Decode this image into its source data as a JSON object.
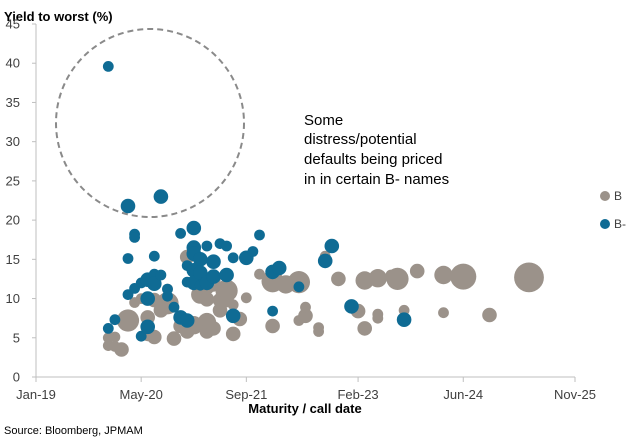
{
  "chart_data": {
    "type": "scatter",
    "title": "",
    "ylabel": "Yield to worst (%)",
    "xlabel": "Maturity / call date",
    "ylim": [
      0,
      45
    ],
    "yticks": [
      0,
      5,
      10,
      15,
      20,
      25,
      30,
      35,
      40,
      45
    ],
    "xlim": [
      "2019-01",
      "2025-11"
    ],
    "xticks": [
      {
        "label": "Jan-19",
        "date": "2019-01"
      },
      {
        "label": "May-20",
        "date": "2020-05"
      },
      {
        "label": "Sep-21",
        "date": "2021-09"
      },
      {
        "label": "Feb-23",
        "date": "2023-02"
      },
      {
        "label": "Jun-24",
        "date": "2024-06"
      },
      {
        "label": "Nov-25",
        "date": "2025-11"
      }
    ],
    "grid": false,
    "legend_position": "right",
    "annotation": {
      "lines": [
        "Some",
        "distress/potential",
        "defaults being priced",
        "in in certain B- names"
      ],
      "circle_style": "dashed"
    },
    "source": "Source: Bloomberg, JPMAM",
    "series": [
      {
        "name": "B",
        "color": "#9b928a",
        "points": [
          {
            "date": "2019-12",
            "y": 5.0,
            "size": 2
          },
          {
            "date": "2019-12",
            "y": 4.0,
            "size": 2
          },
          {
            "date": "2020-01",
            "y": 3.9,
            "size": 2
          },
          {
            "date": "2020-01",
            "y": 5.1,
            "size": 2
          },
          {
            "date": "2020-02",
            "y": 3.5,
            "size": 3
          },
          {
            "date": "2020-03",
            "y": 7.2,
            "size": 5
          },
          {
            "date": "2020-04",
            "y": 9.5,
            "size": 2
          },
          {
            "date": "2020-05",
            "y": 10.0,
            "size": 2
          },
          {
            "date": "2020-06",
            "y": 7.6,
            "size": 3
          },
          {
            "date": "2020-06",
            "y": 5.5,
            "size": 3
          },
          {
            "date": "2020-07",
            "y": 9.8,
            "size": 3
          },
          {
            "date": "2020-07",
            "y": 5.1,
            "size": 3
          },
          {
            "date": "2020-08",
            "y": 8.5,
            "size": 3
          },
          {
            "date": "2020-09",
            "y": 9.4,
            "size": 5
          },
          {
            "date": "2020-09",
            "y": 11.2,
            "size": 2
          },
          {
            "date": "2020-10",
            "y": 4.9,
            "size": 3
          },
          {
            "date": "2020-11",
            "y": 6.5,
            "size": 3
          },
          {
            "date": "2020-12",
            "y": 15.3,
            "size": 3
          },
          {
            "date": "2020-12",
            "y": 5.8,
            "size": 3
          },
          {
            "date": "2021-01",
            "y": 6.6,
            "size": 4
          },
          {
            "date": "2021-02",
            "y": 12.3,
            "size": 3
          },
          {
            "date": "2021-02",
            "y": 10.5,
            "size": 4
          },
          {
            "date": "2021-03",
            "y": 9.9,
            "size": 3
          },
          {
            "date": "2021-03",
            "y": 11.4,
            "size": 3
          },
          {
            "date": "2021-03",
            "y": 7.0,
            "size": 4
          },
          {
            "date": "2021-03",
            "y": 5.8,
            "size": 3
          },
          {
            "date": "2021-04",
            "y": 11.8,
            "size": 3
          },
          {
            "date": "2021-04",
            "y": 12.5,
            "size": 3
          },
          {
            "date": "2021-04",
            "y": 6.2,
            "size": 3
          },
          {
            "date": "2021-05",
            "y": 9.8,
            "size": 3
          },
          {
            "date": "2021-05",
            "y": 8.5,
            "size": 3
          },
          {
            "date": "2021-06",
            "y": 11.0,
            "size": 5
          },
          {
            "date": "2021-06",
            "y": 9.8,
            "size": 3
          },
          {
            "date": "2021-07",
            "y": 5.5,
            "size": 3
          },
          {
            "date": "2021-07",
            "y": 9.2,
            "size": 2
          },
          {
            "date": "2021-08",
            "y": 7.4,
            "size": 3
          },
          {
            "date": "2021-09",
            "y": 10.1,
            "size": 2
          },
          {
            "date": "2021-11",
            "y": 13.1,
            "size": 2
          },
          {
            "date": "2022-01",
            "y": 6.5,
            "size": 3
          },
          {
            "date": "2022-01",
            "y": 12.2,
            "size": 5
          },
          {
            "date": "2022-03",
            "y": 11.8,
            "size": 4
          },
          {
            "date": "2022-05",
            "y": 12.1,
            "size": 5
          },
          {
            "date": "2022-05",
            "y": 7.2,
            "size": 2
          },
          {
            "date": "2022-06",
            "y": 7.8,
            "size": 3
          },
          {
            "date": "2022-06",
            "y": 8.9,
            "size": 2
          },
          {
            "date": "2022-08",
            "y": 5.8,
            "size": 2
          },
          {
            "date": "2022-08",
            "y": 6.3,
            "size": 2
          },
          {
            "date": "2022-09",
            "y": 15.4,
            "size": 2
          },
          {
            "date": "2022-11",
            "y": 12.5,
            "size": 3
          },
          {
            "date": "2023-02",
            "y": 8.4,
            "size": 3
          },
          {
            "date": "2023-03",
            "y": 12.3,
            "size": 4
          },
          {
            "date": "2023-03",
            "y": 6.2,
            "size": 3
          },
          {
            "date": "2023-05",
            "y": 12.6,
            "size": 4
          },
          {
            "date": "2023-05",
            "y": 7.5,
            "size": 2
          },
          {
            "date": "2023-05",
            "y": 8.0,
            "size": 2
          },
          {
            "date": "2023-07",
            "y": 13.0,
            "size": 2
          },
          {
            "date": "2023-08",
            "y": 12.5,
            "size": 5
          },
          {
            "date": "2023-09",
            "y": 8.5,
            "size": 2
          },
          {
            "date": "2023-11",
            "y": 13.5,
            "size": 3
          },
          {
            "date": "2024-03",
            "y": 13.0,
            "size": 4
          },
          {
            "date": "2024-03",
            "y": 8.2,
            "size": 2
          },
          {
            "date": "2024-06",
            "y": 12.8,
            "size": 6
          },
          {
            "date": "2024-10",
            "y": 7.9,
            "size": 3
          },
          {
            "date": "2025-04",
            "y": 12.7,
            "size": 7
          }
        ]
      },
      {
        "name": "B-",
        "color": "#0f6b94",
        "points": [
          {
            "date": "2019-12",
            "y": 39.6,
            "size": 2
          },
          {
            "date": "2019-12",
            "y": 6.2,
            "size": 2
          },
          {
            "date": "2020-01",
            "y": 7.3,
            "size": 2
          },
          {
            "date": "2020-03",
            "y": 21.8,
            "size": 3
          },
          {
            "date": "2020-03",
            "y": 15.1,
            "size": 2
          },
          {
            "date": "2020-03",
            "y": 10.5,
            "size": 2
          },
          {
            "date": "2020-04",
            "y": 18.2,
            "size": 2
          },
          {
            "date": "2020-04",
            "y": 17.8,
            "size": 2
          },
          {
            "date": "2020-04",
            "y": 11.3,
            "size": 2
          },
          {
            "date": "2020-05",
            "y": 12.0,
            "size": 2
          },
          {
            "date": "2020-05",
            "y": 5.2,
            "size": 2
          },
          {
            "date": "2020-06",
            "y": 12.4,
            "size": 3
          },
          {
            "date": "2020-06",
            "y": 10.0,
            "size": 3
          },
          {
            "date": "2020-06",
            "y": 6.4,
            "size": 3
          },
          {
            "date": "2020-07",
            "y": 13.1,
            "size": 2
          },
          {
            "date": "2020-07",
            "y": 11.9,
            "size": 3
          },
          {
            "date": "2020-07",
            "y": 15.4,
            "size": 2
          },
          {
            "date": "2020-08",
            "y": 23.0,
            "size": 3
          },
          {
            "date": "2020-08",
            "y": 13.0,
            "size": 2
          },
          {
            "date": "2020-09",
            "y": 10.3,
            "size": 2
          },
          {
            "date": "2020-09",
            "y": 11.2,
            "size": 2
          },
          {
            "date": "2020-10",
            "y": 8.9,
            "size": 2
          },
          {
            "date": "2020-11",
            "y": 18.3,
            "size": 2
          },
          {
            "date": "2020-11",
            "y": 7.6,
            "size": 3
          },
          {
            "date": "2020-12",
            "y": 12.1,
            "size": 2
          },
          {
            "date": "2020-12",
            "y": 14.2,
            "size": 2
          },
          {
            "date": "2020-12",
            "y": 7.2,
            "size": 3
          },
          {
            "date": "2021-01",
            "y": 19.0,
            "size": 3
          },
          {
            "date": "2021-01",
            "y": 16.5,
            "size": 3
          },
          {
            "date": "2021-01",
            "y": 15.7,
            "size": 3
          },
          {
            "date": "2021-01",
            "y": 13.6,
            "size": 3
          },
          {
            "date": "2021-01",
            "y": 12.0,
            "size": 3
          },
          {
            "date": "2021-02",
            "y": 15.0,
            "size": 3
          },
          {
            "date": "2021-02",
            "y": 13.3,
            "size": 3
          },
          {
            "date": "2021-02",
            "y": 11.7,
            "size": 2
          },
          {
            "date": "2021-03",
            "y": 16.7,
            "size": 2
          },
          {
            "date": "2021-03",
            "y": 12.0,
            "size": 3
          },
          {
            "date": "2021-04",
            "y": 14.7,
            "size": 3
          },
          {
            "date": "2021-04",
            "y": 12.8,
            "size": 3
          },
          {
            "date": "2021-05",
            "y": 17.0,
            "size": 2
          },
          {
            "date": "2021-06",
            "y": 13.0,
            "size": 3
          },
          {
            "date": "2021-06",
            "y": 16.7,
            "size": 2
          },
          {
            "date": "2021-07",
            "y": 7.8,
            "size": 3
          },
          {
            "date": "2021-07",
            "y": 15.2,
            "size": 2
          },
          {
            "date": "2021-09",
            "y": 15.2,
            "size": 3
          },
          {
            "date": "2021-10",
            "y": 16.0,
            "size": 2
          },
          {
            "date": "2021-11",
            "y": 18.1,
            "size": 2
          },
          {
            "date": "2022-01",
            "y": 8.4,
            "size": 2
          },
          {
            "date": "2022-01",
            "y": 13.4,
            "size": 3
          },
          {
            "date": "2022-02",
            "y": 13.9,
            "size": 3
          },
          {
            "date": "2022-05",
            "y": 11.5,
            "size": 2
          },
          {
            "date": "2022-09",
            "y": 14.8,
            "size": 3
          },
          {
            "date": "2022-10",
            "y": 16.7,
            "size": 3
          },
          {
            "date": "2023-01",
            "y": 9.0,
            "size": 3
          },
          {
            "date": "2023-09",
            "y": 7.3,
            "size": 3
          }
        ]
      }
    ]
  }
}
